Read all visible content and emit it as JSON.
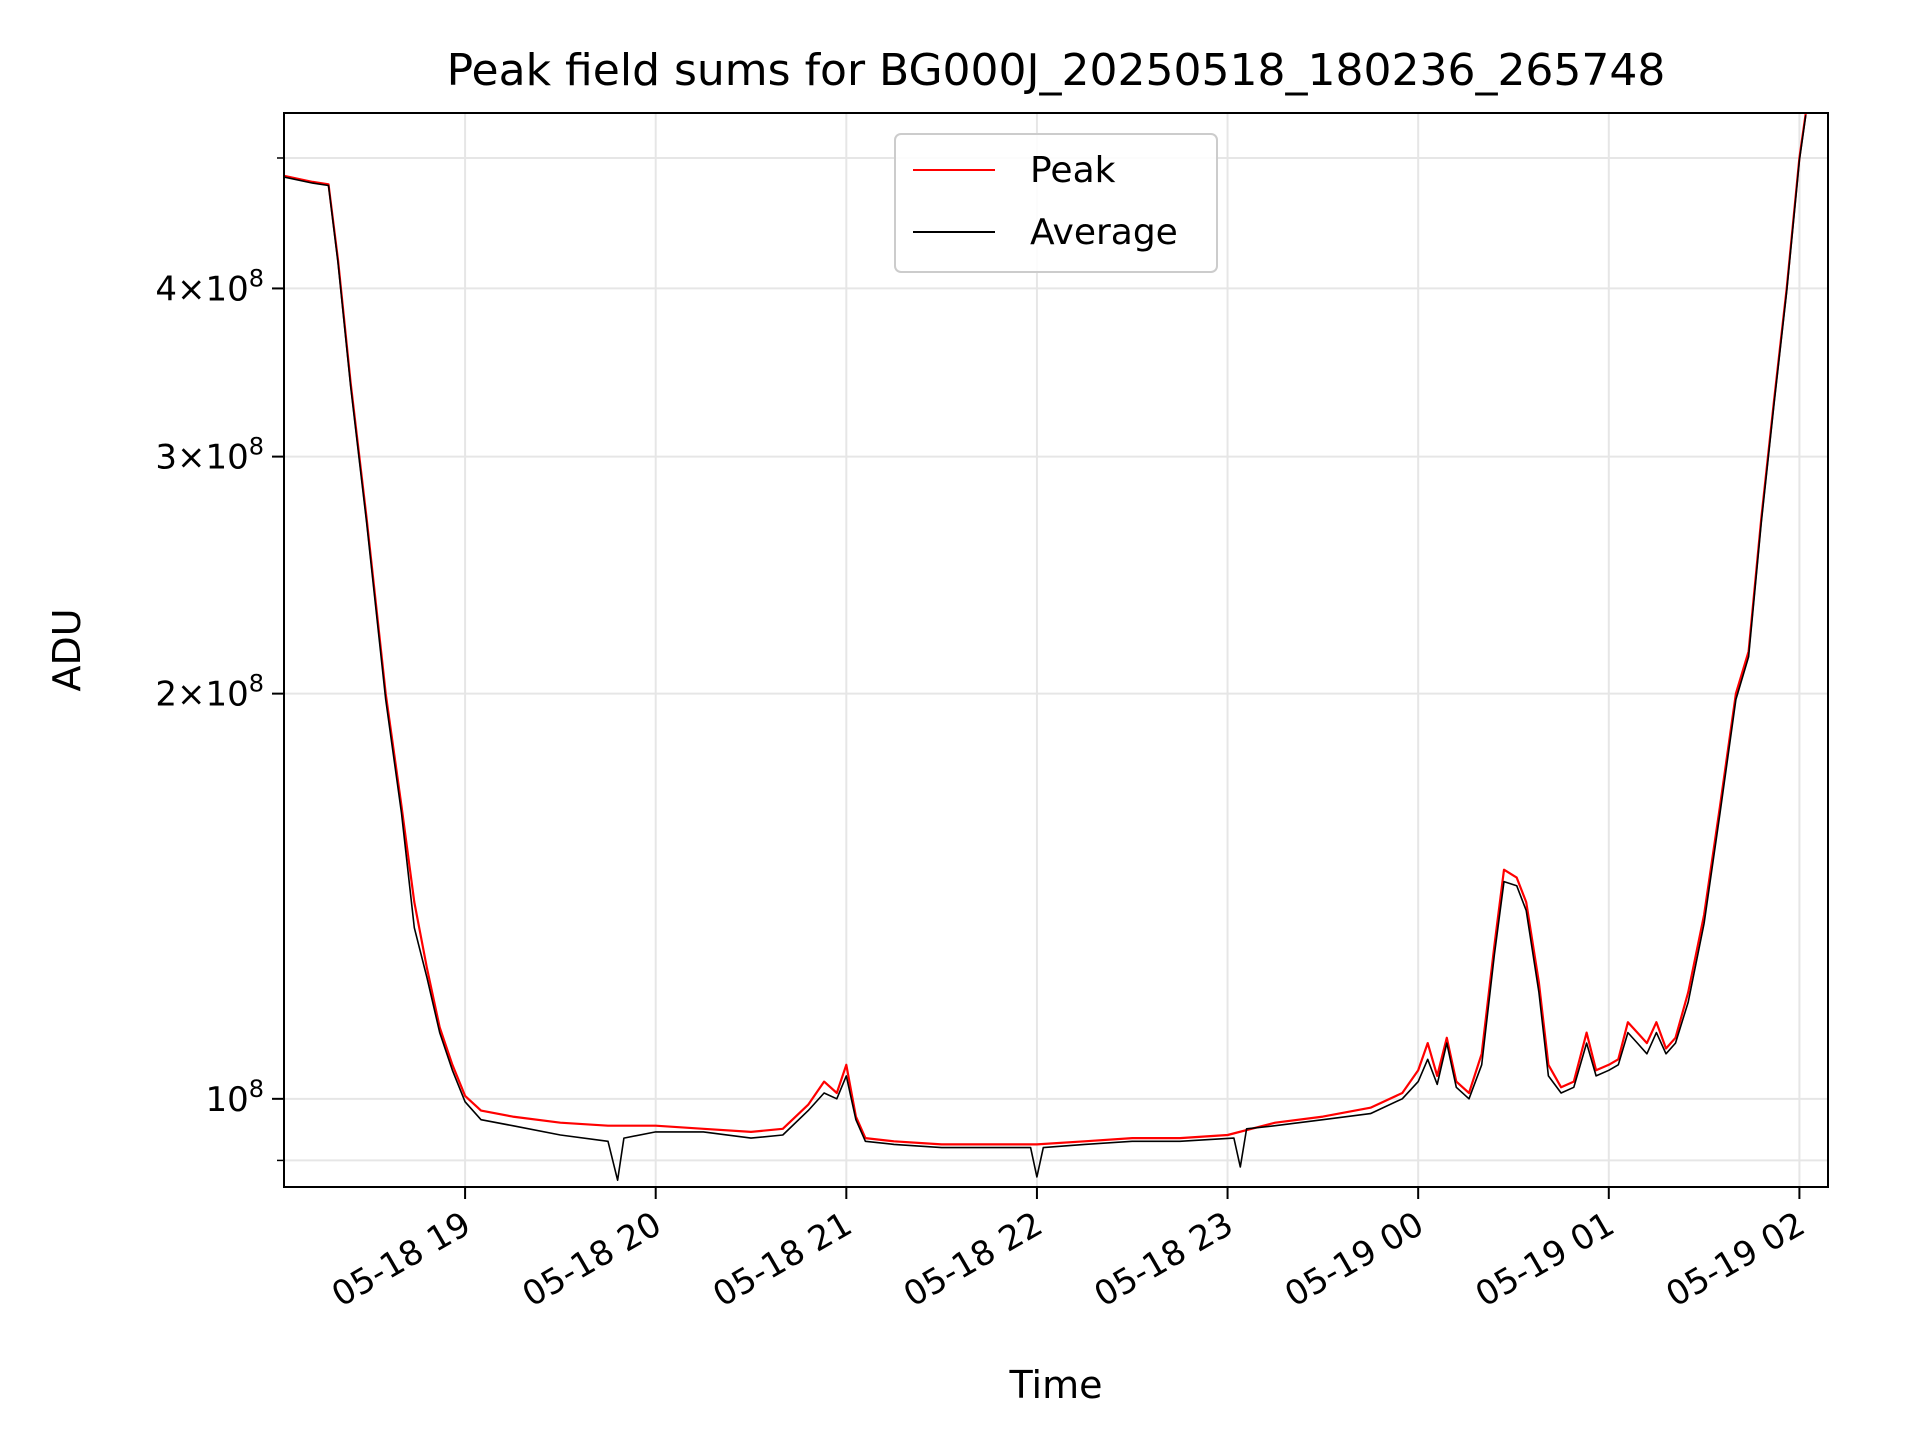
{
  "chart_data": {
    "type": "line",
    "title": "Peak field sums for BG000J_20250518_180236_265748",
    "xlabel": "Time",
    "ylabel": "ADU",
    "y_scale": "log",
    "ylim": [
      86000000,
      540000000
    ],
    "xlim": [
      "2025-05-18 18:03",
      "2025-05-19 02:09"
    ],
    "grid": true,
    "legend_position": "upper-center",
    "x_ticks": [
      {
        "t": "2025-05-18 19:00",
        "label": "05-18 19"
      },
      {
        "t": "2025-05-18 20:00",
        "label": "05-18 20"
      },
      {
        "t": "2025-05-18 21:00",
        "label": "05-18 21"
      },
      {
        "t": "2025-05-18 22:00",
        "label": "05-18 22"
      },
      {
        "t": "2025-05-18 23:00",
        "label": "05-18 23"
      },
      {
        "t": "2025-05-19 00:00",
        "label": "05-19 00"
      },
      {
        "t": "2025-05-19 01:00",
        "label": "05-19 01"
      },
      {
        "t": "2025-05-19 02:00",
        "label": "05-19 02"
      }
    ],
    "y_major_ticks": [
      {
        "v": 100000000,
        "mant": "",
        "exp": "8"
      },
      {
        "v": 200000000,
        "mant": "2",
        "exp": "8"
      },
      {
        "v": 300000000,
        "mant": "3",
        "exp": "8"
      },
      {
        "v": 400000000,
        "mant": "4",
        "exp": "8"
      }
    ],
    "series": [
      {
        "name": "Peak",
        "color": "#ff0000",
        "points": [
          [
            "2025-05-18 18:03",
            485000000
          ],
          [
            "2025-05-18 18:12",
            480000000
          ],
          [
            "2025-05-18 18:17",
            478000000
          ],
          [
            "2025-05-18 18:20",
            420000000
          ],
          [
            "2025-05-18 18:24",
            340000000
          ],
          [
            "2025-05-18 18:29",
            270000000
          ],
          [
            "2025-05-18 18:35",
            200000000
          ],
          [
            "2025-05-18 18:40",
            165000000
          ],
          [
            "2025-05-18 18:44",
            140000000
          ],
          [
            "2025-05-18 18:48",
            125000000
          ],
          [
            "2025-05-18 18:52",
            113000000
          ],
          [
            "2025-05-18 18:56",
            106000000
          ],
          [
            "2025-05-18 19:00",
            100500000
          ],
          [
            "2025-05-18 19:05",
            98000000
          ],
          [
            "2025-05-18 19:15",
            97000000
          ],
          [
            "2025-05-18 19:30",
            96000000
          ],
          [
            "2025-05-18 19:45",
            95500000
          ],
          [
            "2025-05-18 20:00",
            95500000
          ],
          [
            "2025-05-18 20:15",
            95000000
          ],
          [
            "2025-05-18 20:30",
            94500000
          ],
          [
            "2025-05-18 20:40",
            95000000
          ],
          [
            "2025-05-18 20:48",
            99000000
          ],
          [
            "2025-05-18 20:53",
            103000000
          ],
          [
            "2025-05-18 20:57",
            101000000
          ],
          [
            "2025-05-18 21:00",
            106000000
          ],
          [
            "2025-05-18 21:03",
            97000000
          ],
          [
            "2025-05-18 21:06",
            93500000
          ],
          [
            "2025-05-18 21:15",
            93000000
          ],
          [
            "2025-05-18 21:30",
            92500000
          ],
          [
            "2025-05-18 21:45",
            92500000
          ],
          [
            "2025-05-18 22:00",
            92500000
          ],
          [
            "2025-05-18 22:15",
            93000000
          ],
          [
            "2025-05-18 22:30",
            93500000
          ],
          [
            "2025-05-18 22:45",
            93500000
          ],
          [
            "2025-05-18 23:00",
            94000000
          ],
          [
            "2025-05-18 23:15",
            96000000
          ],
          [
            "2025-05-18 23:30",
            97000000
          ],
          [
            "2025-05-18 23:45",
            98500000
          ],
          [
            "2025-05-18 23:55",
            101000000
          ],
          [
            "2025-05-19 00:00",
            105000000
          ],
          [
            "2025-05-19 00:03",
            110000000
          ],
          [
            "2025-05-19 00:06",
            104000000
          ],
          [
            "2025-05-19 00:09",
            111000000
          ],
          [
            "2025-05-19 00:12",
            103000000
          ],
          [
            "2025-05-19 00:16",
            101000000
          ],
          [
            "2025-05-19 00:20",
            108000000
          ],
          [
            "2025-05-19 00:24",
            130000000
          ],
          [
            "2025-05-19 00:27",
            148000000
          ],
          [
            "2025-05-19 00:31",
            146000000
          ],
          [
            "2025-05-19 00:34",
            140000000
          ],
          [
            "2025-05-19 00:38",
            122000000
          ],
          [
            "2025-05-19 00:41",
            106000000
          ],
          [
            "2025-05-19 00:45",
            102000000
          ],
          [
            "2025-05-19 00:49",
            103000000
          ],
          [
            "2025-05-19 00:53",
            112000000
          ],
          [
            "2025-05-19 00:56",
            105000000
          ],
          [
            "2025-05-19 01:00",
            106000000
          ],
          [
            "2025-05-19 01:03",
            107000000
          ],
          [
            "2025-05-19 01:06",
            114000000
          ],
          [
            "2025-05-19 01:09",
            112000000
          ],
          [
            "2025-05-19 01:12",
            110000000
          ],
          [
            "2025-05-19 01:15",
            114000000
          ],
          [
            "2025-05-19 01:18",
            109000000
          ],
          [
            "2025-05-19 01:21",
            111000000
          ],
          [
            "2025-05-19 01:25",
            120000000
          ],
          [
            "2025-05-19 01:30",
            137000000
          ],
          [
            "2025-05-19 01:35",
            165000000
          ],
          [
            "2025-05-19 01:40",
            200000000
          ],
          [
            "2025-05-19 01:44",
            215000000
          ],
          [
            "2025-05-19 01:48",
            270000000
          ],
          [
            "2025-05-19 01:52",
            330000000
          ],
          [
            "2025-05-19 01:56",
            400000000
          ],
          [
            "2025-05-19 02:00",
            500000000
          ],
          [
            "2025-05-19 02:02",
            540000000
          ]
        ]
      },
      {
        "name": "Average",
        "color": "#000000",
        "points": [
          [
            "2025-05-18 18:03",
            484000000
          ],
          [
            "2025-05-18 18:12",
            479000000
          ],
          [
            "2025-05-18 18:17",
            477000000
          ],
          [
            "2025-05-18 18:20",
            418000000
          ],
          [
            "2025-05-18 18:24",
            338000000
          ],
          [
            "2025-05-18 18:29",
            268000000
          ],
          [
            "2025-05-18 18:35",
            198000000
          ],
          [
            "2025-05-18 18:40",
            163000000
          ],
          [
            "2025-05-18 18:44",
            134000000
          ],
          [
            "2025-05-18 18:48",
            123000000
          ],
          [
            "2025-05-18 18:52",
            112000000
          ],
          [
            "2025-05-18 18:56",
            105000000
          ],
          [
            "2025-05-18 19:00",
            99500000
          ],
          [
            "2025-05-18 19:05",
            96500000
          ],
          [
            "2025-05-18 19:15",
            95500000
          ],
          [
            "2025-05-18 19:30",
            94000000
          ],
          [
            "2025-05-18 19:45",
            93000000
          ],
          [
            "2025-05-18 19:48",
            87000000
          ],
          [
            "2025-05-18 19:50",
            93500000
          ],
          [
            "2025-05-18 20:00",
            94500000
          ],
          [
            "2025-05-18 20:15",
            94500000
          ],
          [
            "2025-05-18 20:30",
            93500000
          ],
          [
            "2025-05-18 20:40",
            94000000
          ],
          [
            "2025-05-18 20:48",
            98000000
          ],
          [
            "2025-05-18 20:53",
            101000000
          ],
          [
            "2025-05-18 20:57",
            100000000
          ],
          [
            "2025-05-18 21:00",
            104000000
          ],
          [
            "2025-05-18 21:03",
            96500000
          ],
          [
            "2025-05-18 21:06",
            93000000
          ],
          [
            "2025-05-18 21:15",
            92500000
          ],
          [
            "2025-05-18 21:30",
            92000000
          ],
          [
            "2025-05-18 21:45",
            92000000
          ],
          [
            "2025-05-18 21:58",
            92000000
          ],
          [
            "2025-05-18 22:00",
            87500000
          ],
          [
            "2025-05-18 22:02",
            92000000
          ],
          [
            "2025-05-18 22:15",
            92500000
          ],
          [
            "2025-05-18 22:30",
            93000000
          ],
          [
            "2025-05-18 22:45",
            93000000
          ],
          [
            "2025-05-18 23:02",
            93500000
          ],
          [
            "2025-05-18 23:04",
            89000000
          ],
          [
            "2025-05-18 23:06",
            95000000
          ],
          [
            "2025-05-18 23:15",
            95500000
          ],
          [
            "2025-05-18 23:30",
            96500000
          ],
          [
            "2025-05-18 23:45",
            97500000
          ],
          [
            "2025-05-18 23:55",
            100000000
          ],
          [
            "2025-05-19 00:00",
            103000000
          ],
          [
            "2025-05-19 00:03",
            107000000
          ],
          [
            "2025-05-19 00:06",
            102500000
          ],
          [
            "2025-05-19 00:09",
            110000000
          ],
          [
            "2025-05-19 00:12",
            102000000
          ],
          [
            "2025-05-19 00:16",
            100000000
          ],
          [
            "2025-05-19 00:20",
            106000000
          ],
          [
            "2025-05-19 00:24",
            128000000
          ],
          [
            "2025-05-19 00:27",
            145000000
          ],
          [
            "2025-05-19 00:31",
            144000000
          ],
          [
            "2025-05-19 00:34",
            138000000
          ],
          [
            "2025-05-19 00:38",
            120000000
          ],
          [
            "2025-05-19 00:41",
            104000000
          ],
          [
            "2025-05-19 00:45",
            101000000
          ],
          [
            "2025-05-19 00:49",
            102000000
          ],
          [
            "2025-05-19 00:53",
            110000000
          ],
          [
            "2025-05-19 00:56",
            104000000
          ],
          [
            "2025-05-19 01:00",
            105000000
          ],
          [
            "2025-05-19 01:03",
            106000000
          ],
          [
            "2025-05-19 01:06",
            112000000
          ],
          [
            "2025-05-19 01:09",
            110000000
          ],
          [
            "2025-05-19 01:12",
            108000000
          ],
          [
            "2025-05-19 01:15",
            112000000
          ],
          [
            "2025-05-19 01:18",
            108000000
          ],
          [
            "2025-05-19 01:21",
            110000000
          ],
          [
            "2025-05-19 01:25",
            118000000
          ],
          [
            "2025-05-19 01:30",
            135000000
          ],
          [
            "2025-05-19 01:35",
            163000000
          ],
          [
            "2025-05-19 01:40",
            198000000
          ],
          [
            "2025-05-19 01:44",
            213000000
          ],
          [
            "2025-05-19 01:48",
            268000000
          ],
          [
            "2025-05-19 01:52",
            328000000
          ],
          [
            "2025-05-19 01:56",
            398000000
          ],
          [
            "2025-05-19 02:00",
            498000000
          ],
          [
            "2025-05-19 02:02",
            538000000
          ]
        ]
      }
    ]
  }
}
